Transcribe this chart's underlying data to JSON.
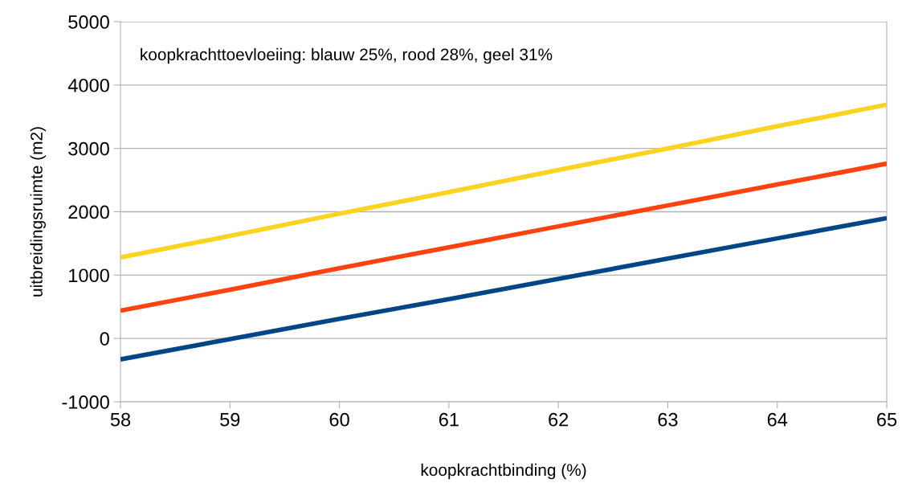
{
  "chart_data": {
    "type": "line",
    "xlabel": "koopkrachtbinding (%)",
    "ylabel": "uitbreidingsruimte (m2)",
    "annotations": [
      "koopkrachttoevloeiing: blauw 25%, rood 28%, geel 31%"
    ],
    "x": [
      58,
      59,
      60,
      61,
      62,
      63,
      64,
      65
    ],
    "series": [
      {
        "color": "#004586",
        "values": [
          -330,
          -10,
          310,
          620,
          940,
          1260,
          1580,
          1900
        ]
      },
      {
        "color": "#ff420e",
        "values": [
          440,
          770,
          1110,
          1440,
          1770,
          2100,
          2430,
          2760
        ]
      },
      {
        "color": "#ffd320",
        "values": [
          1280,
          1620,
          1970,
          2310,
          2660,
          3000,
          3350,
          3690
        ]
      }
    ],
    "xlim": [
      58,
      65
    ],
    "xticks": [
      58,
      59,
      60,
      61,
      62,
      63,
      64,
      65
    ],
    "ylim": [
      -1000,
      5000
    ],
    "yticks": [
      -1000,
      0,
      1000,
      2000,
      3000,
      4000,
      5000
    ],
    "grid": "y",
    "marker": "none",
    "line_style": "solid"
  }
}
